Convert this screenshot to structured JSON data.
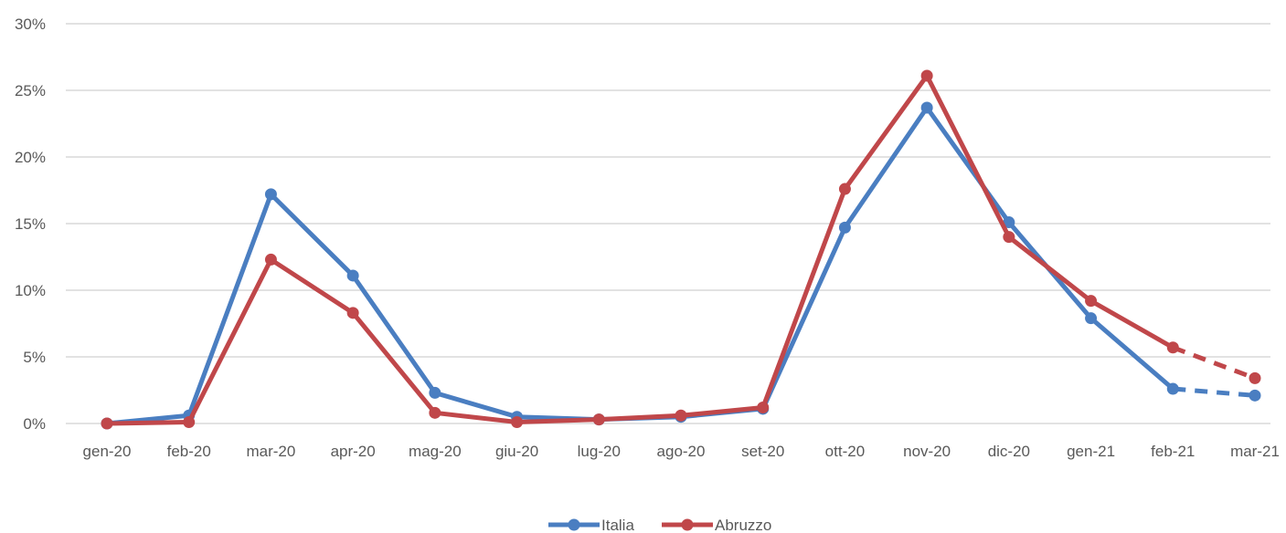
{
  "chart_data": {
    "type": "line",
    "title": "",
    "xlabel": "",
    "ylabel": "",
    "categories": [
      "gen-20",
      "feb-20",
      "mar-20",
      "apr-20",
      "mag-20",
      "giu-20",
      "lug-20",
      "ago-20",
      "set-20",
      "ott-20",
      "nov-20",
      "dic-20",
      "gen-21",
      "feb-21",
      "mar-21"
    ],
    "ylim": [
      0,
      30
    ],
    "yticks": [
      0,
      5,
      10,
      15,
      20,
      25,
      30
    ],
    "ytick_labels": [
      "0%",
      "5%",
      "10%",
      "15%",
      "20%",
      "25%",
      "30%"
    ],
    "y_unit": "%",
    "grid": true,
    "legend_position": "bottom",
    "series": [
      {
        "name": "Italia",
        "color": "#4A7EC1",
        "values": [
          0.0,
          0.6,
          17.2,
          11.1,
          2.3,
          0.5,
          0.3,
          0.5,
          1.1,
          14.7,
          23.7,
          15.1,
          7.9,
          2.6,
          2.1
        ],
        "dashed_from_index": 13
      },
      {
        "name": "Abruzzo",
        "color": "#C0474A",
        "values": [
          0.0,
          0.1,
          12.3,
          8.3,
          0.8,
          0.1,
          0.3,
          0.6,
          1.2,
          17.6,
          26.1,
          14.0,
          9.2,
          5.7,
          3.4
        ],
        "dashed_from_index": 13
      }
    ]
  }
}
